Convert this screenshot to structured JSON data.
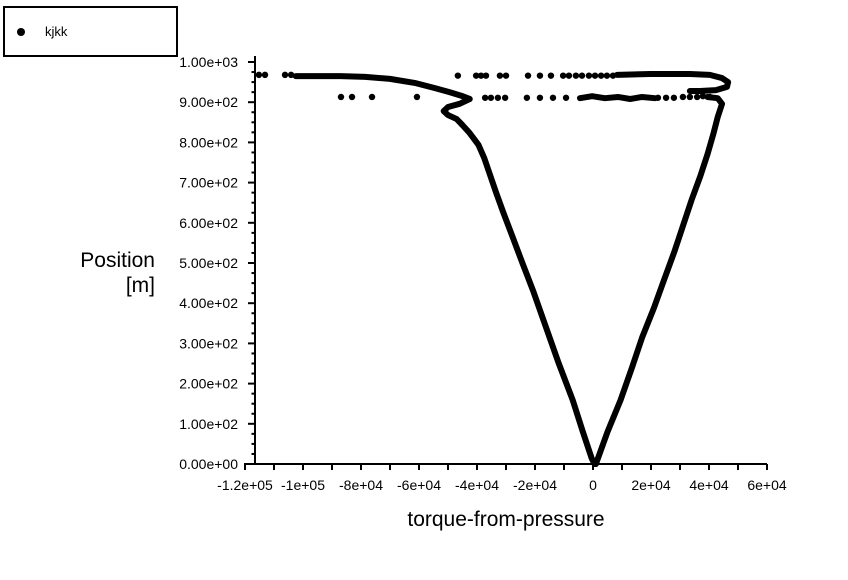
{
  "colors": {
    "foreground": "#000000",
    "background": "#ffffff"
  },
  "chart_data": {
    "type": "scatter",
    "title": "",
    "xlabel": "torque-from-pressure",
    "ylabel_lines": [
      "Position",
      "[m]"
    ],
    "xlim": [
      -120000,
      60000
    ],
    "ylim": [
      0,
      1000
    ],
    "grid": false,
    "legend": {
      "position": "top-left-outside",
      "entries": [
        "kjkk"
      ]
    },
    "x_axis": {
      "major_step": 20000,
      "minor_step": 10000,
      "tick_labels": [
        "-1.2e+05",
        "-1e+05",
        "-8e+04",
        "-6e+04",
        "-4e+04",
        "-2e+04",
        "0",
        "2e+04",
        "4e+04",
        "6e+04"
      ]
    },
    "y_axis": {
      "major_step": 100,
      "minor_step": 25,
      "tick_labels": [
        "0.00e+00",
        "1.00e+02",
        "2.00e+02",
        "3.00e+02",
        "4.00e+02",
        "5.00e+02",
        "6.00e+02",
        "7.00e+02",
        "8.00e+02",
        "9.00e+02",
        "1.00e+03"
      ]
    },
    "series": [
      {
        "name": "kjkk",
        "marker": "filled-circle",
        "color": "#000000",
        "dense_paths": [
          [
            [
              -102500,
              965
            ],
            [
              -87000,
              965
            ],
            [
              -78500,
              963
            ],
            [
              -70000,
              958
            ],
            [
              -61500,
              948
            ],
            [
              -54500,
              935
            ],
            [
              -49500,
              925
            ],
            [
              -45000,
              915
            ],
            [
              -42500,
              908
            ],
            [
              -46000,
              896
            ],
            [
              -50000,
              888
            ],
            [
              -51500,
              878
            ],
            [
              -50000,
              868
            ],
            [
              -47000,
              858
            ],
            [
              -45000,
              843
            ],
            [
              -42500,
              823
            ],
            [
              -39500,
              794
            ],
            [
              -37500,
              761
            ],
            [
              -35500,
              719
            ],
            [
              -33500,
              677
            ],
            [
              -31000,
              627
            ],
            [
              -28000,
              570
            ],
            [
              -24500,
              503
            ],
            [
              -20500,
              428
            ],
            [
              -16500,
              346
            ],
            [
              -12000,
              254
            ],
            [
              -7000,
              159
            ],
            [
              -3500,
              80
            ],
            [
              -500,
              15
            ],
            [
              500,
              0
            ]
          ],
          [
            [
              1000,
              0
            ],
            [
              5000,
              80
            ],
            [
              9500,
              159
            ],
            [
              13500,
              241
            ],
            [
              17000,
              316
            ],
            [
              21000,
              388
            ],
            [
              24500,
              458
            ],
            [
              28000,
              527
            ],
            [
              31000,
              592
            ],
            [
              34000,
              657
            ],
            [
              37000,
              716
            ],
            [
              39500,
              771
            ],
            [
              41500,
              821
            ],
            [
              43000,
              863
            ],
            [
              44500,
              896
            ],
            [
              43000,
              910
            ],
            [
              39500,
              913
            ]
          ],
          [
            [
              8300,
              968
            ],
            [
              19700,
              970
            ],
            [
              33400,
              970
            ],
            [
              40300,
              968
            ],
            [
              44500,
              960
            ],
            [
              46600,
              950
            ],
            [
              46200,
              938
            ],
            [
              42400,
              930
            ],
            [
              36900,
              928
            ],
            [
              33400,
              928
            ]
          ],
          [
            [
              -4500,
              910
            ],
            [
              -300,
              915
            ],
            [
              4100,
              910
            ],
            [
              8600,
              913
            ],
            [
              12800,
              908
            ],
            [
              16900,
              913
            ],
            [
              21400,
              910
            ]
          ]
        ],
        "points": [
          [
            -115200,
            968
          ],
          [
            -113100,
            968
          ],
          [
            -106200,
            968
          ],
          [
            -104100,
            968
          ],
          [
            -46600,
            966
          ],
          [
            -40300,
            966
          ],
          [
            -38600,
            966
          ],
          [
            -36900,
            966
          ],
          [
            -32100,
            966
          ],
          [
            -30000,
            966
          ],
          [
            -22400,
            966
          ],
          [
            -18300,
            966
          ],
          [
            -14500,
            966
          ],
          [
            -10300,
            966
          ],
          [
            -8300,
            966
          ],
          [
            -5900,
            966
          ],
          [
            -3800,
            966
          ],
          [
            -1400,
            966
          ],
          [
            700,
            966
          ],
          [
            2800,
            966
          ],
          [
            4800,
            966
          ],
          [
            6900,
            966
          ],
          [
            -86900,
            913
          ],
          [
            -83100,
            913
          ],
          [
            -76200,
            913
          ],
          [
            -60700,
            913
          ],
          [
            -37200,
            911
          ],
          [
            -35200,
            911
          ],
          [
            -32800,
            911
          ],
          [
            -30300,
            911
          ],
          [
            -22800,
            911
          ],
          [
            -18300,
            911
          ],
          [
            -13800,
            911
          ],
          [
            -9300,
            911
          ],
          [
            22400,
            911
          ],
          [
            25200,
            911
          ],
          [
            27900,
            911
          ],
          [
            31000,
            913
          ],
          [
            33400,
            913
          ],
          [
            35900,
            913
          ],
          [
            37900,
            915
          ],
          [
            40300,
            913
          ]
        ]
      }
    ]
  }
}
